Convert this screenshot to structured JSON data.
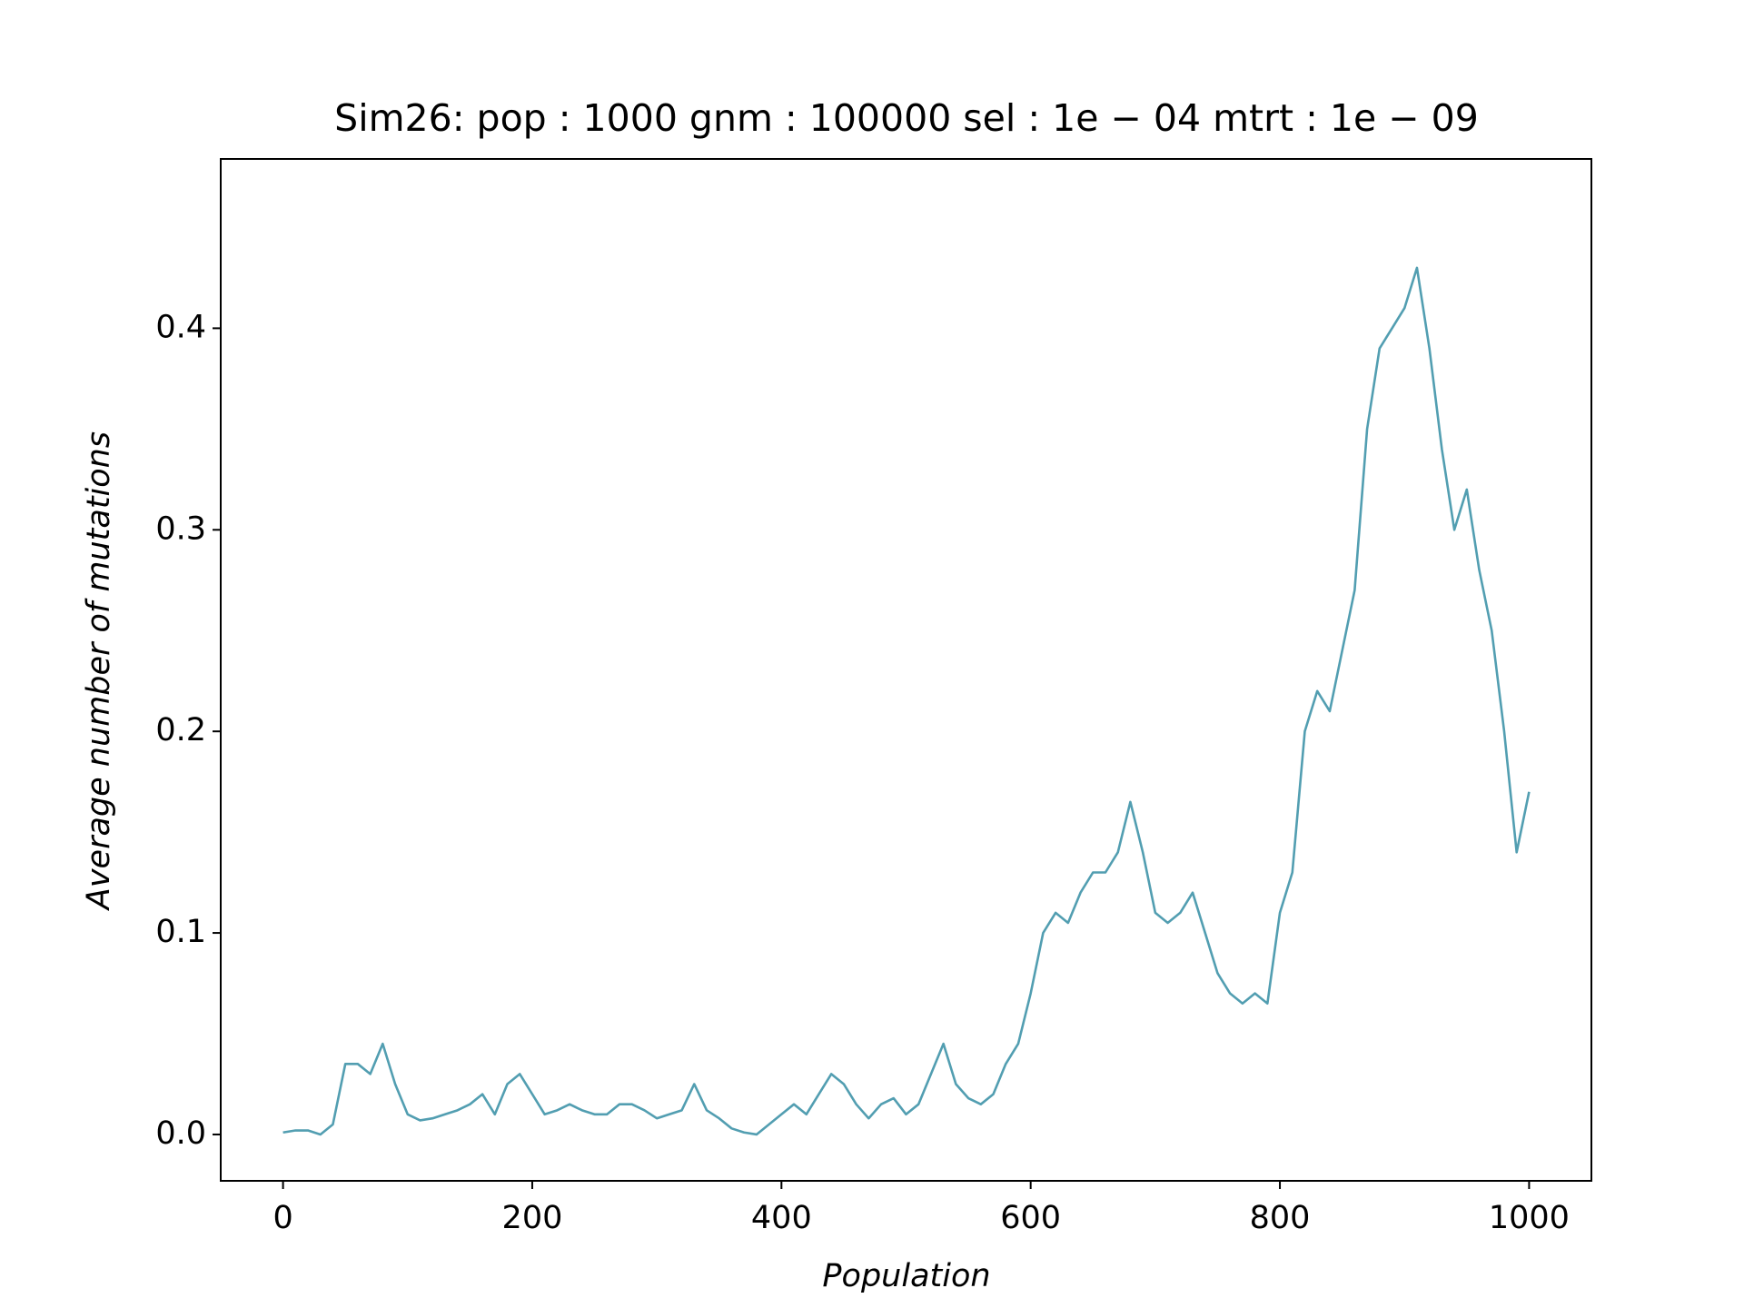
{
  "chart_data": {
    "type": "line",
    "title": "Sim26: pop : 1000 gnm : 100000 sel : 1e − 04 mtrt : 1e − 09",
    "x_label": "Population",
    "y_label": "Average number of mutations",
    "x": [
      0,
      10,
      20,
      30,
      40,
      50,
      60,
      70,
      80,
      90,
      100,
      110,
      120,
      130,
      140,
      150,
      160,
      170,
      180,
      190,
      200,
      210,
      220,
      230,
      240,
      250,
      260,
      270,
      280,
      290,
      300,
      310,
      320,
      330,
      340,
      350,
      360,
      370,
      380,
      390,
      400,
      410,
      420,
      430,
      440,
      450,
      460,
      470,
      480,
      490,
      500,
      510,
      520,
      530,
      540,
      550,
      560,
      570,
      580,
      590,
      600,
      610,
      620,
      630,
      640,
      650,
      660,
      670,
      680,
      690,
      700,
      710,
      720,
      730,
      740,
      750,
      760,
      770,
      780,
      790,
      800,
      810,
      820,
      830,
      840,
      850,
      860,
      870,
      880,
      890,
      900,
      910,
      920,
      930,
      940,
      950,
      960,
      970,
      980,
      990,
      1000
    ],
    "series": [
      {
        "name": "Average number of mutations",
        "color": "#529eb1",
        "values": [
          0.001,
          0.002,
          0.002,
          0.0,
          0.005,
          0.035,
          0.035,
          0.03,
          0.045,
          0.025,
          0.01,
          0.007,
          0.008,
          0.01,
          0.012,
          0.015,
          0.02,
          0.01,
          0.025,
          0.03,
          0.02,
          0.01,
          0.012,
          0.015,
          0.012,
          0.01,
          0.01,
          0.015,
          0.015,
          0.012,
          0.008,
          0.01,
          0.012,
          0.025,
          0.012,
          0.008,
          0.003,
          0.001,
          0.0,
          0.005,
          0.01,
          0.015,
          0.01,
          0.02,
          0.03,
          0.025,
          0.015,
          0.008,
          0.015,
          0.018,
          0.01,
          0.015,
          0.03,
          0.045,
          0.025,
          0.018,
          0.015,
          0.02,
          0.035,
          0.045,
          0.07,
          0.1,
          0.11,
          0.105,
          0.12,
          0.13,
          0.13,
          0.14,
          0.165,
          0.14,
          0.11,
          0.105,
          0.11,
          0.12,
          0.1,
          0.08,
          0.07,
          0.065,
          0.07,
          0.065,
          0.11,
          0.13,
          0.2,
          0.22,
          0.21,
          0.24,
          0.27,
          0.35,
          0.39,
          0.4,
          0.41,
          0.43,
          0.39,
          0.34,
          0.3,
          0.32,
          0.28,
          0.25,
          0.2,
          0.14,
          0.17
        ]
      }
    ],
    "xlim": [
      -50,
      1050
    ],
    "ylim": [
      -0.023,
      0.484
    ],
    "xticks": [
      0,
      200,
      400,
      600,
      800,
      1000
    ],
    "yticks": [
      {
        "value": 0,
        "label": "0.0"
      },
      0.1,
      0.2,
      0.3,
      0.4
    ]
  }
}
